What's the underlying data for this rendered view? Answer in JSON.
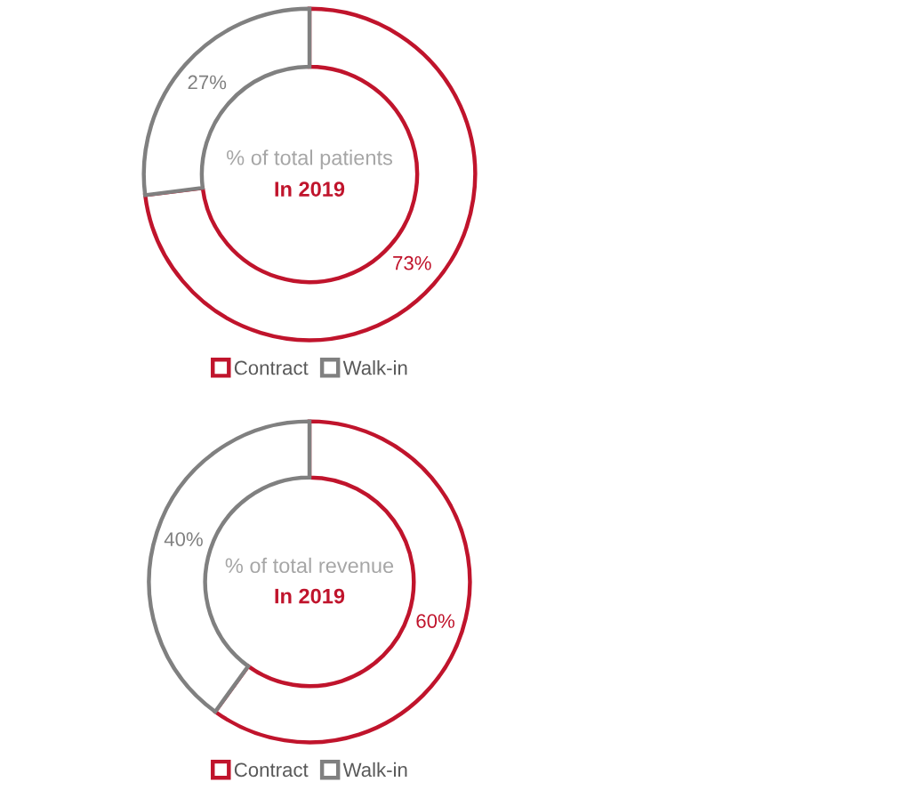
{
  "chart_data": [
    {
      "type": "donut",
      "title": "% of total patients",
      "subtitle": "In 2019",
      "categories": [
        "Contract",
        "Walk-in"
      ],
      "values": [
        73,
        27
      ],
      "colors": [
        "#c0142c",
        "#808080"
      ],
      "value_labels": [
        "73%",
        "27%"
      ],
      "legend": "bottom"
    },
    {
      "type": "donut",
      "title": "% of total revenue",
      "subtitle": "In 2019",
      "categories": [
        "Contract",
        "Walk-in"
      ],
      "values": [
        60,
        40
      ],
      "colors": [
        "#c0142c",
        "#808080"
      ],
      "value_labels": [
        "60%",
        "40%"
      ],
      "legend": "bottom"
    }
  ]
}
